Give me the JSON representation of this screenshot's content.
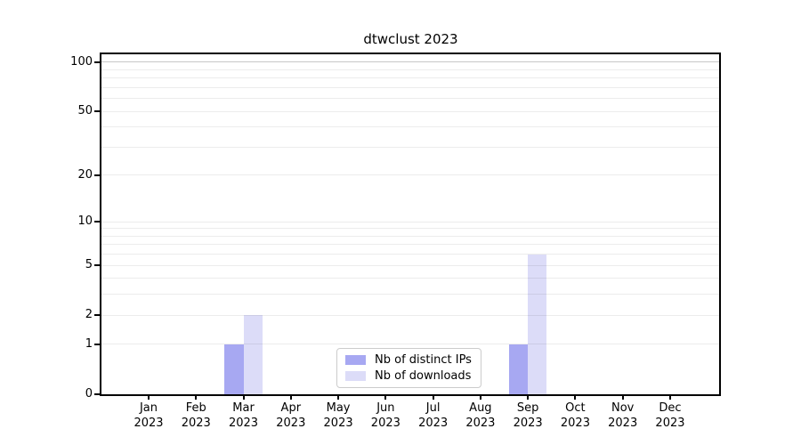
{
  "chart_data": {
    "type": "bar",
    "title": "dtwclust 2023",
    "categories": [
      "Jan",
      "Feb",
      "Mar",
      "Apr",
      "May",
      "Jun",
      "Jul",
      "Aug",
      "Sep",
      "Oct",
      "Nov",
      "Dec"
    ],
    "year_label": "2023",
    "series": [
      {
        "name": "Nb of distinct IPs",
        "color": "#a7a8f2",
        "values": [
          0,
          0,
          1,
          0,
          0,
          0,
          0,
          0,
          1,
          0,
          0,
          0
        ]
      },
      {
        "name": "Nb of downloads",
        "color": "#dcdcf8",
        "values": [
          0,
          0,
          2,
          0,
          0,
          0,
          0,
          0,
          6,
          0,
          0,
          0
        ]
      }
    ],
    "xlabel": "",
    "ylabel": "",
    "yscale": "log1p",
    "ylim": [
      0,
      113
    ],
    "yticks": [
      0,
      1,
      2,
      5,
      10,
      20,
      50,
      100
    ],
    "yticks_minor": [
      3,
      4,
      6,
      7,
      8,
      9,
      30,
      40,
      60,
      70,
      80,
      90
    ],
    "grid": true,
    "legend_position": "lower center",
    "colors": {
      "spine": "#000000",
      "grid_minor": "rgba(0,0,0,0.075)",
      "grid_top": "rgba(0,0,0,0.22)",
      "legend_border": "#cccccc",
      "background": "#ffffff",
      "text": "#000000"
    }
  }
}
